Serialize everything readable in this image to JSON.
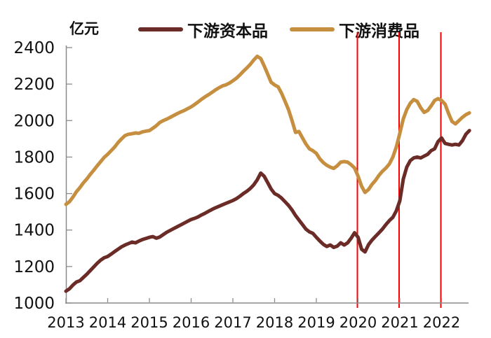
{
  "chart_data": {
    "type": "line",
    "title": "",
    "unit_label": "亿元",
    "grid": false,
    "legend_position": "top",
    "x_axis": {
      "start_year": 2013,
      "points_per_year": 12,
      "tick_labels": [
        "2013",
        "2014",
        "2015",
        "2016",
        "2017",
        "2018",
        "2019",
        "2020",
        "2021",
        "2022"
      ]
    },
    "y_axis": {
      "ylim": [
        1000,
        2400
      ],
      "ticks": [
        1000,
        1200,
        1400,
        1600,
        1800,
        2000,
        2200,
        2400
      ]
    },
    "vlines": {
      "color": "#FF0000",
      "years": [
        2020,
        2021,
        2022
      ]
    },
    "axis_color": "#8c8c8c",
    "series": [
      {
        "name": "下游资本品",
        "color": "#6B2B27",
        "values": [
          1065,
          1078,
          1098,
          1115,
          1122,
          1140,
          1158,
          1178,
          1198,
          1218,
          1235,
          1248,
          1255,
          1268,
          1282,
          1295,
          1308,
          1318,
          1326,
          1334,
          1330,
          1340,
          1348,
          1354,
          1360,
          1364,
          1355,
          1362,
          1375,
          1388,
          1398,
          1408,
          1418,
          1428,
          1438,
          1448,
          1458,
          1464,
          1472,
          1483,
          1492,
          1503,
          1513,
          1522,
          1530,
          1538,
          1546,
          1554,
          1562,
          1572,
          1585,
          1600,
          1612,
          1628,
          1648,
          1675,
          1712,
          1695,
          1660,
          1625,
          1600,
          1590,
          1575,
          1555,
          1535,
          1510,
          1480,
          1455,
          1430,
          1405,
          1390,
          1382,
          1360,
          1340,
          1322,
          1310,
          1318,
          1305,
          1312,
          1330,
          1318,
          1330,
          1355,
          1385,
          1360,
          1295,
          1280,
          1320,
          1345,
          1365,
          1385,
          1405,
          1430,
          1452,
          1470,
          1505,
          1560,
          1680,
          1745,
          1780,
          1795,
          1800,
          1795,
          1805,
          1815,
          1835,
          1845,
          1885,
          1905,
          1875,
          1870,
          1866,
          1870,
          1866,
          1890,
          1925,
          1945
        ]
      },
      {
        "name": "下游消费品",
        "color": "#C68F3F",
        "values": [
          1541,
          1555,
          1580,
          1610,
          1632,
          1658,
          1680,
          1705,
          1728,
          1752,
          1775,
          1798,
          1815,
          1835,
          1855,
          1880,
          1900,
          1918,
          1925,
          1928,
          1932,
          1930,
          1938,
          1942,
          1945,
          1958,
          1972,
          1990,
          2000,
          2008,
          2018,
          2028,
          2038,
          2047,
          2055,
          2065,
          2075,
          2088,
          2102,
          2117,
          2130,
          2142,
          2155,
          2168,
          2180,
          2190,
          2196,
          2205,
          2218,
          2232,
          2250,
          2270,
          2288,
          2308,
          2332,
          2352,
          2340,
          2300,
          2255,
          2210,
          2195,
          2185,
          2150,
          2105,
          2060,
          2000,
          1935,
          1940,
          1905,
          1872,
          1845,
          1835,
          1820,
          1790,
          1770,
          1755,
          1745,
          1738,
          1752,
          1772,
          1775,
          1772,
          1758,
          1740,
          1695,
          1640,
          1606,
          1622,
          1650,
          1672,
          1700,
          1722,
          1740,
          1762,
          1800,
          1855,
          1930,
          2010,
          2060,
          2095,
          2115,
          2105,
          2070,
          2045,
          2055,
          2080,
          2110,
          2120,
          2110,
          2090,
          2040,
          1995,
          1982,
          2000,
          2018,
          2032,
          2042
        ]
      }
    ]
  }
}
